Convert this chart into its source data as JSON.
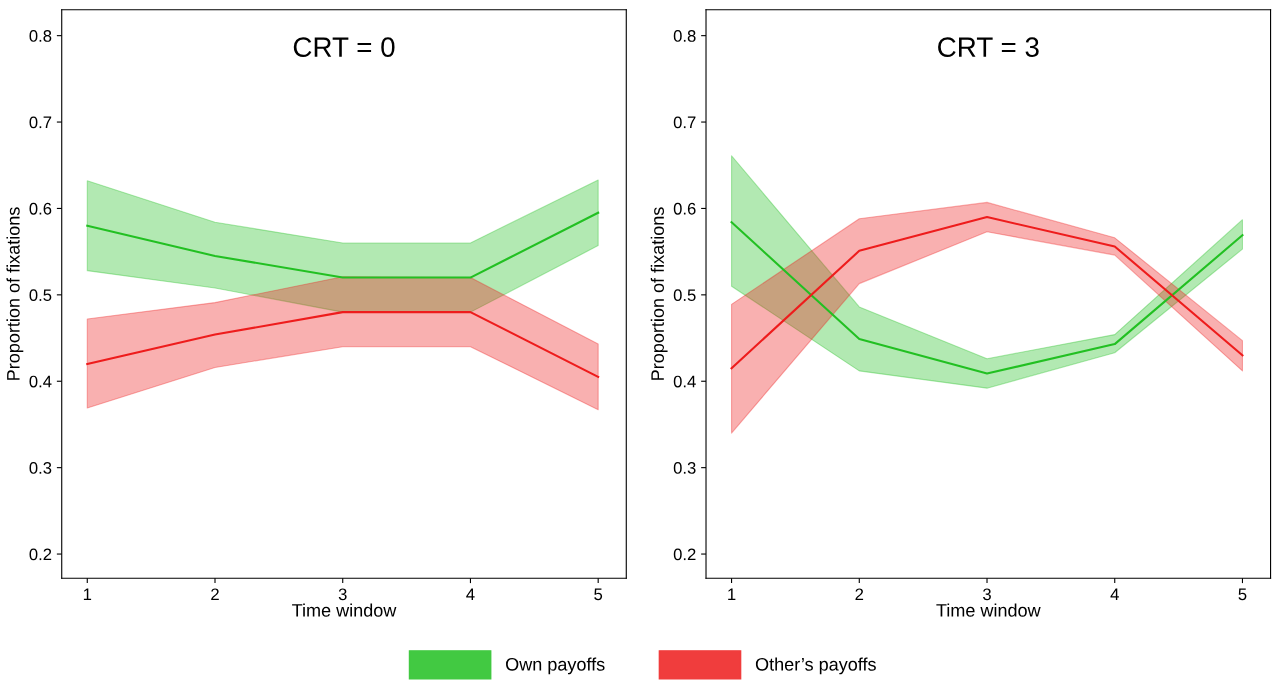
{
  "chart_data": [
    {
      "type": "line",
      "title": "CRT = 0",
      "xlabel": "Time window",
      "ylabel": "Proportion of fixations",
      "x": [
        1,
        2,
        3,
        4,
        5
      ],
      "xlim": [
        0.8,
        5.22
      ],
      "xticks": [
        1,
        2,
        3,
        4,
        5
      ],
      "ylim": [
        0.172,
        0.83
      ],
      "yticks": [
        0.2,
        0.3,
        0.4,
        0.5,
        0.6,
        0.7,
        0.8
      ],
      "grid": false,
      "legend": "bottom",
      "marker": "none",
      "line_style": "solid",
      "series": [
        {
          "name": "Own payoffs",
          "color": "#22c022",
          "values": [
            0.58,
            0.545,
            0.52,
            0.52,
            0.595
          ],
          "lower": [
            0.528,
            0.508,
            0.48,
            0.48,
            0.557
          ],
          "upper": [
            0.632,
            0.584,
            0.56,
            0.56,
            0.633
          ]
        },
        {
          "name": "Other’s payoffs",
          "color": "#ee1c1c",
          "values": [
            0.42,
            0.454,
            0.48,
            0.48,
            0.405
          ],
          "lower": [
            0.369,
            0.416,
            0.44,
            0.44,
            0.367
          ],
          "upper": [
            0.472,
            0.491,
            0.521,
            0.52,
            0.443
          ]
        }
      ]
    },
    {
      "type": "line",
      "title": "CRT = 3",
      "xlabel": "Time window",
      "ylabel": "Proportion of fixations",
      "x": [
        1,
        2,
        3,
        4,
        5
      ],
      "xlim": [
        0.8,
        5.22
      ],
      "xticks": [
        1,
        2,
        3,
        4,
        5
      ],
      "ylim": [
        0.172,
        0.83
      ],
      "yticks": [
        0.2,
        0.3,
        0.4,
        0.5,
        0.6,
        0.7,
        0.8
      ],
      "grid": false,
      "marker": "none",
      "line_style": "solid",
      "series": [
        {
          "color": "#22c022",
          "values": [
            0.584,
            0.449,
            0.409,
            0.443,
            0.569
          ],
          "lower": [
            0.51,
            0.412,
            0.392,
            0.433,
            0.553
          ],
          "upper": [
            0.661,
            0.486,
            0.426,
            0.454,
            0.587
          ]
        },
        {
          "color": "#ee1c1c",
          "values": [
            0.415,
            0.551,
            0.59,
            0.556,
            0.43
          ],
          "lower": [
            0.34,
            0.513,
            0.573,
            0.546,
            0.412
          ],
          "upper": [
            0.489,
            0.588,
            0.607,
            0.566,
            0.447
          ]
        }
      ]
    }
  ]
}
